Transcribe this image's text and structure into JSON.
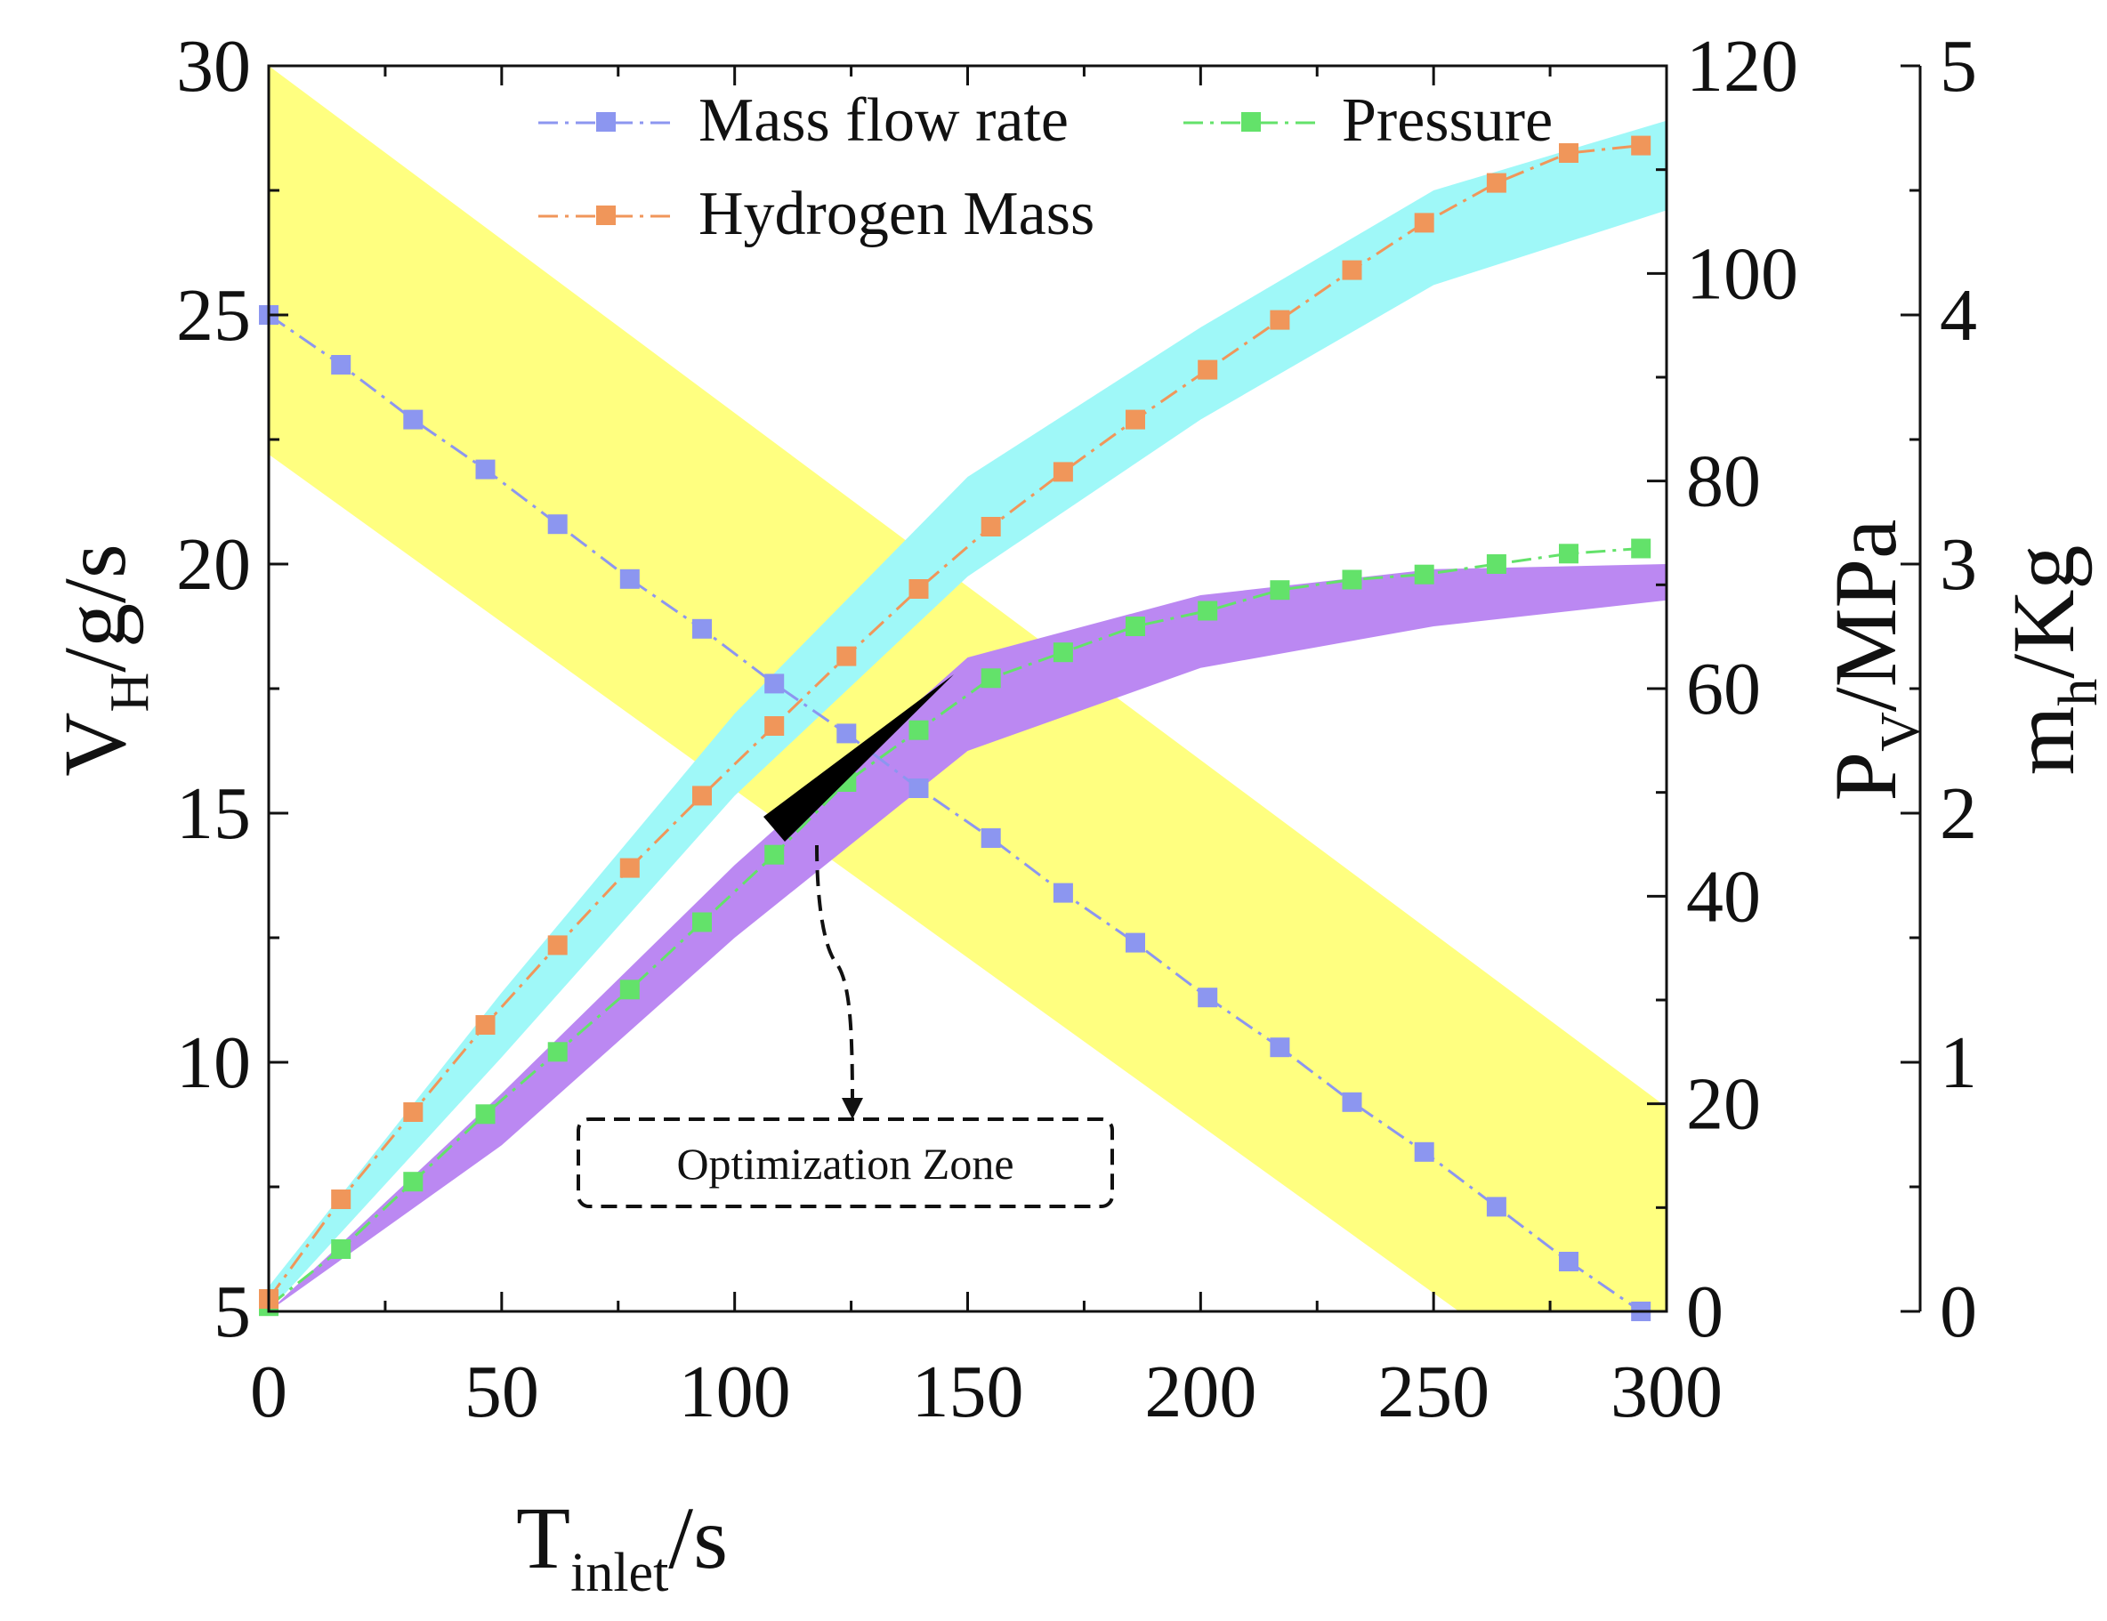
{
  "chart_data": {
    "type": "line",
    "xlabel": "T",
    "xlabel_sub": "inlet",
    "xlabel_unit": "/s",
    "xlim": [
      0,
      300
    ],
    "xticks": [
      0,
      50,
      100,
      150,
      200,
      250,
      300
    ],
    "axes": {
      "left": {
        "label": "V",
        "label_sub": "H",
        "label_unit": "/g/s",
        "lim": [
          5,
          30
        ],
        "ticks": [
          5,
          10,
          15,
          20,
          25,
          30
        ]
      },
      "right1": {
        "label": "P",
        "label_sub": "V",
        "label_unit": "/MPa",
        "lim": [
          0,
          120
        ],
        "ticks": [
          0,
          20,
          40,
          60,
          80,
          100,
          120
        ]
      },
      "right2": {
        "label": "m",
        "label_sub": "h",
        "label_unit": "/Kg",
        "lim": [
          0,
          5
        ],
        "ticks": [
          0,
          1,
          2,
          3,
          4,
          5
        ]
      }
    },
    "series": [
      {
        "name": "Mass flow rate",
        "axis": "left",
        "color": "#8c96f0",
        "x": [
          0,
          15.5,
          31,
          46.5,
          62,
          77.5,
          93,
          108.5,
          124,
          139.5,
          155,
          170.5,
          186,
          201.5,
          217,
          232.5,
          248,
          263.5,
          279,
          294.5
        ],
        "values": [
          25.0,
          24.0,
          22.9,
          21.9,
          20.8,
          19.7,
          18.7,
          17.6,
          16.6,
          15.5,
          14.5,
          13.4,
          12.4,
          11.3,
          10.3,
          9.2,
          8.2,
          7.1,
          6.0,
          5.0
        ]
      },
      {
        "name": "Pressure",
        "axis": "right1",
        "color": "#63e26a",
        "x": [
          0,
          15.5,
          31,
          46.5,
          62,
          77.5,
          93,
          108.5,
          124,
          139.5,
          155,
          170.5,
          186,
          201.5,
          217,
          232.5,
          248,
          263.5,
          279,
          294.5
        ],
        "values": [
          0.5,
          6,
          12.5,
          19,
          25,
          31,
          37.5,
          44,
          51,
          56,
          61,
          63.5,
          66,
          67.5,
          69.5,
          70.5,
          71,
          72,
          73,
          73.5
        ]
      },
      {
        "name": "Hydrogen Mass",
        "axis": "right2",
        "color": "#f0965a",
        "x": [
          0,
          15.5,
          31,
          46.5,
          62,
          77.5,
          93,
          108.5,
          124,
          139.5,
          155,
          170.5,
          186,
          201.5,
          217,
          232.5,
          248,
          263.5,
          279,
          294.5
        ],
        "values": [
          0.05,
          0.45,
          0.8,
          1.15,
          1.47,
          1.78,
          2.07,
          2.35,
          2.63,
          2.9,
          3.15,
          3.37,
          3.58,
          3.78,
          3.98,
          4.18,
          4.37,
          4.53,
          4.65,
          4.68
        ]
      }
    ],
    "bands": [
      {
        "name": "flow-band",
        "axis": "left",
        "color": "#ffff80",
        "x": [
          0,
          300
        ],
        "upper": [
          30,
          9.1
        ],
        "lower": [
          22.2,
          2.0
        ]
      },
      {
        "name": "pressure-band",
        "axis": "right1",
        "color": "#bb88f2",
        "x": [
          0,
          50,
          100,
          150,
          200,
          250,
          300
        ],
        "upper": [
          0,
          21,
          43,
          63,
          69,
          71.5,
          72
        ],
        "lower": [
          0,
          16,
          36,
          54,
          62,
          66,
          68.5
        ]
      },
      {
        "name": "hydrogen-band",
        "axis": "right2",
        "color": "#9ff8f8",
        "x": [
          0,
          50,
          100,
          150,
          200,
          250,
          300
        ],
        "upper": [
          0.1,
          1.28,
          2.4,
          3.35,
          3.95,
          4.5,
          4.78
        ],
        "lower": [
          0.0,
          1.02,
          2.07,
          2.95,
          3.58,
          4.12,
          4.42
        ]
      }
    ],
    "legend": {
      "placement": "top-center",
      "entries": [
        "Mass flow rate",
        "Pressure",
        "Hydrogen Mass"
      ]
    },
    "annotation": {
      "text": "Optimization Zone"
    },
    "grid": false
  }
}
